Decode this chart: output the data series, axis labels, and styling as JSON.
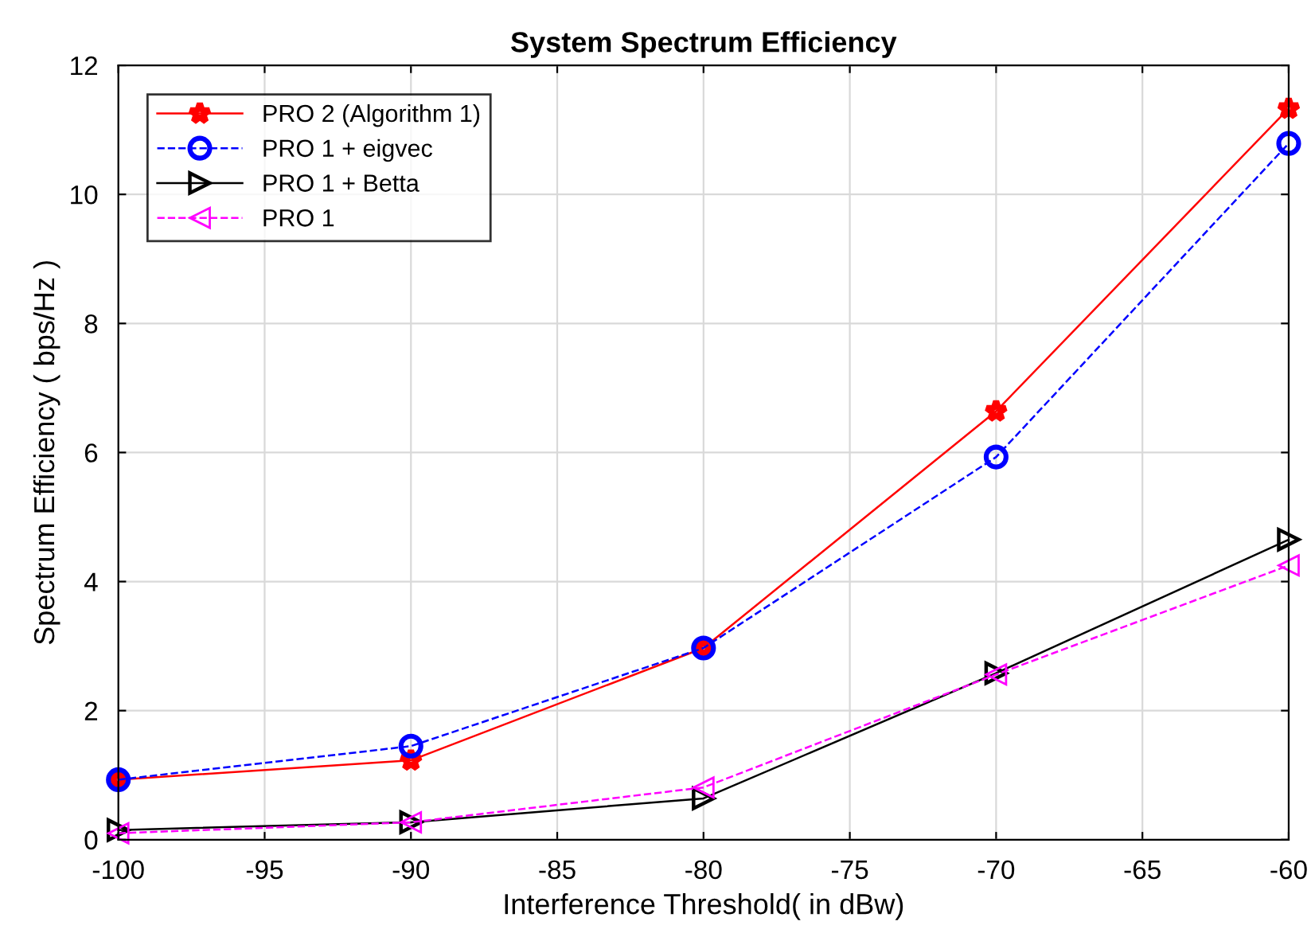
{
  "chart_data": {
    "type": "line",
    "title": "System Spectrum Efficiency",
    "xlabel": "Interference Threshold( in dBw)",
    "ylabel": "Spectrum Efficiency ( bps/Hz )",
    "x": [
      -100,
      -90,
      -80,
      -70,
      -60
    ],
    "series": [
      {
        "name": "PRO 2 (Algorithm 1)",
        "color": "#ff0000",
        "marker": "star",
        "line_style": "solid",
        "values": [
          0.93,
          1.23,
          2.97,
          6.64,
          11.33
        ]
      },
      {
        "name": "PRO 1 + eigvec",
        "color": "#0000ff",
        "marker": "circle",
        "line_style": "dashed",
        "values": [
          0.93,
          1.45,
          2.97,
          5.93,
          10.79
        ]
      },
      {
        "name": "PRO 1 + Betta",
        "color": "#000000",
        "marker": "triangle_right",
        "line_style": "solid",
        "values": [
          0.15,
          0.27,
          0.64,
          2.58,
          4.65
        ]
      },
      {
        "name": "PRO 1",
        "color": "#ff00ff",
        "marker": "triangle_left",
        "line_style": "dashed",
        "values": [
          0.1,
          0.27,
          0.81,
          2.56,
          4.25
        ]
      }
    ],
    "xlim": [
      -100,
      -60
    ],
    "xticks": [
      -100,
      -95,
      -90,
      -85,
      -80,
      -75,
      -70,
      -65,
      -60
    ],
    "ylim": [
      0,
      12
    ],
    "yticks": [
      0,
      2,
      4,
      6,
      8,
      10,
      12
    ],
    "grid": true,
    "legend": "top left"
  }
}
